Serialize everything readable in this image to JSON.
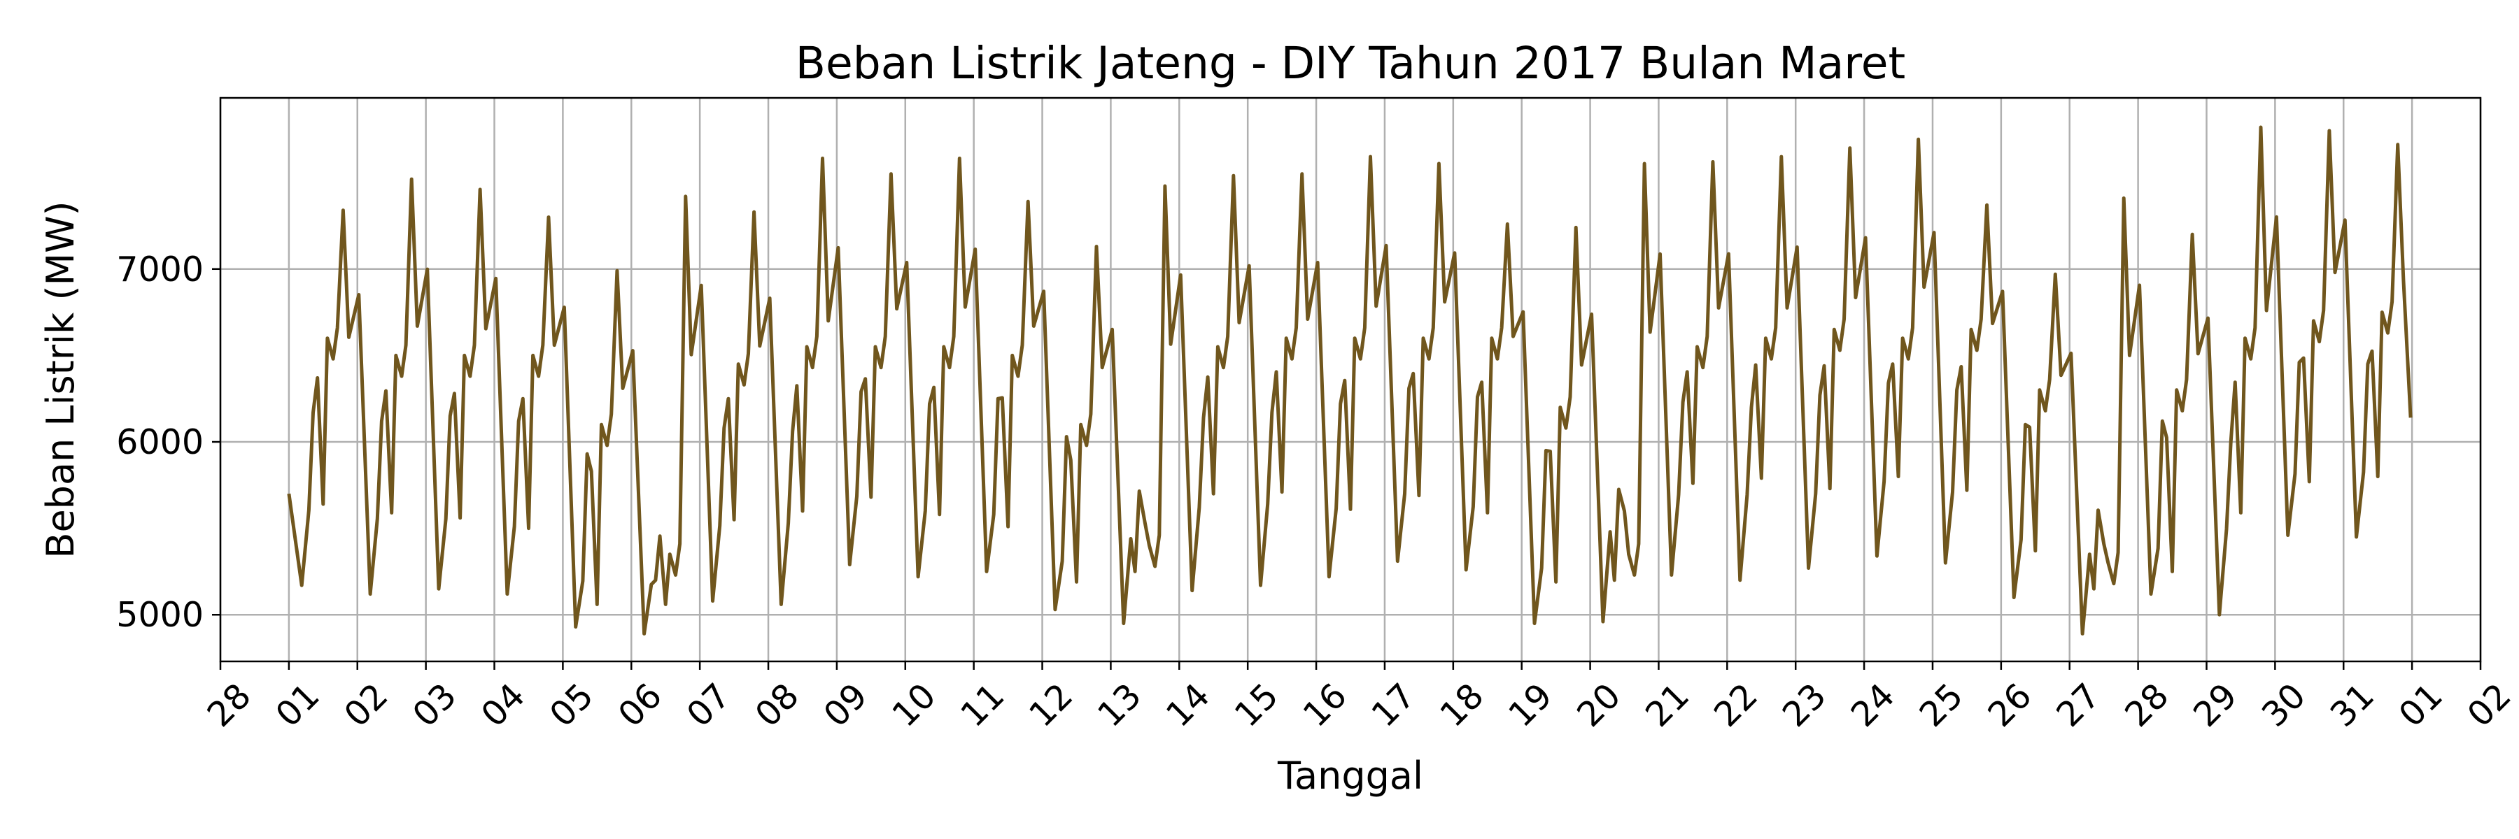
{
  "chart_data": {
    "type": "line",
    "title": "Beban Listrik Jateng - DIY Tahun 2017 Bulan Maret",
    "xlabel": "Tanggal",
    "ylabel": "Beban Listrik (MW)",
    "xlim": [
      "2017-02-28",
      "2017-04-02"
    ],
    "ylim": [
      4730,
      7990
    ],
    "grid": true,
    "x_ticks": [
      "28",
      "01",
      "02",
      "03",
      "04",
      "05",
      "06",
      "07",
      "08",
      "09",
      "10",
      "11",
      "12",
      "13",
      "14",
      "15",
      "16",
      "17",
      "18",
      "19",
      "20",
      "21",
      "22",
      "23",
      "24",
      "25",
      "26",
      "27",
      "28",
      "29",
      "30",
      "31",
      "01",
      "02"
    ],
    "y_ticks": [
      5000,
      6000,
      7000
    ],
    "y_tick_labels": [
      "5000",
      "6000",
      "7000"
    ],
    "line_color": "#70561d",
    "series": [
      {
        "x_start": "2017-03-01 00:00",
        "x_end": "2017-03-31 23:30",
        "sampling": "30 min",
        "daily_profile": [
          {
            "t": "00:00",
            "rel": "prev-day evening level"
          },
          {
            "t": "04:00",
            "rel": "overnight minimum"
          },
          {
            "t": "08:00",
            "rel": "morning rise"
          },
          {
            "t": "12:00",
            "rel": "midday dip"
          },
          {
            "t": "14:00",
            "rel": "afternoon plateau"
          },
          {
            "t": "19:00",
            "rel": "evening peak"
          }
        ],
        "daily_min": [
          5170,
          5120,
          5150,
          5120,
          4930,
          4890,
          5080,
          5060,
          5290,
          5220,
          5250,
          5030,
          4950,
          5140,
          5170,
          5220,
          5310,
          5260,
          4950,
          4960,
          5230,
          5200,
          5270,
          5340,
          5300,
          5100,
          4890,
          5120,
          5000,
          5460,
          5450
        ],
        "daily_midday": [
          5640,
          5590,
          5560,
          5500,
          5060,
          5060,
          5550,
          5600,
          5680,
          5580,
          5510,
          5190,
          5530,
          5700,
          5710,
          5610,
          5690,
          5590,
          5190,
          5600,
          5760,
          5790,
          5730,
          5800,
          5720,
          5370,
          5410,
          5250,
          5590,
          5770,
          5800
        ],
        "daily_afternoon": [
          6600,
          6500,
          6500,
          6500,
          6100,
          5350,
          6450,
          6550,
          6550,
          6550,
          6500,
          6100,
          5400,
          6550,
          6600,
          6600,
          6600,
          6600,
          6200,
          5350,
          6550,
          6600,
          6650,
          6600,
          6650,
          6300,
          5300,
          6300,
          6600,
          6700,
          6750
        ],
        "daily_peak": [
          7340,
          7520,
          7460,
          7300,
          6990,
          7420,
          7330,
          7640,
          7550,
          7640,
          7390,
          7130,
          7480,
          7540,
          7550,
          7650,
          7610,
          7260,
          7240,
          7610,
          7620,
          7650,
          7700,
          7750,
          7370,
          6970,
          7410,
          7200,
          7820,
          7800,
          7720
        ],
        "end_value": 6140,
        "start_value": 5700
      }
    ]
  }
}
